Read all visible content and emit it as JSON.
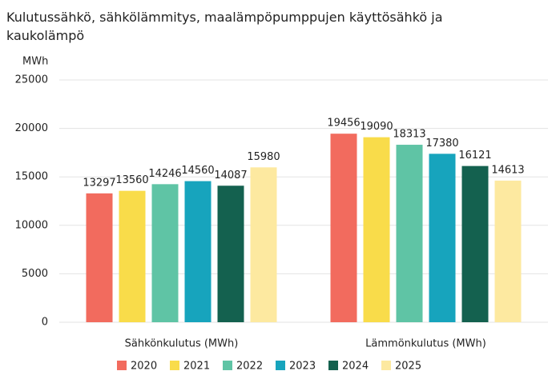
{
  "chart_data": {
    "type": "bar",
    "title": "Kulutussähkö, sähkölämmitys, maalämpöpumppujen käyttösähkö ja kaukolämpö",
    "y_label": "MWh",
    "categories": [
      "Sähkönkulutus (MWh)",
      "Lämmönkulutus (MWh)"
    ],
    "series": [
      {
        "name": "2020",
        "color": "#f26b5e",
        "values": [
          13297,
          19456
        ]
      },
      {
        "name": "2021",
        "color": "#f9dc4a",
        "values": [
          13560,
          19090
        ]
      },
      {
        "name": "2022",
        "color": "#5fc4a5",
        "values": [
          14246,
          18313
        ]
      },
      {
        "name": "2023",
        "color": "#17a4bd",
        "values": [
          14560,
          17380
        ]
      },
      {
        "name": "2024",
        "color": "#14614f",
        "values": [
          14087,
          16121
        ]
      },
      {
        "name": "2025",
        "color": "#fde9a0",
        "values": [
          15980,
          14613
        ]
      }
    ],
    "ylim": [
      0,
      25000
    ],
    "yticks": [
      0,
      5000,
      10000,
      15000,
      20000,
      25000
    ],
    "grid": true,
    "legend": "bottom"
  }
}
